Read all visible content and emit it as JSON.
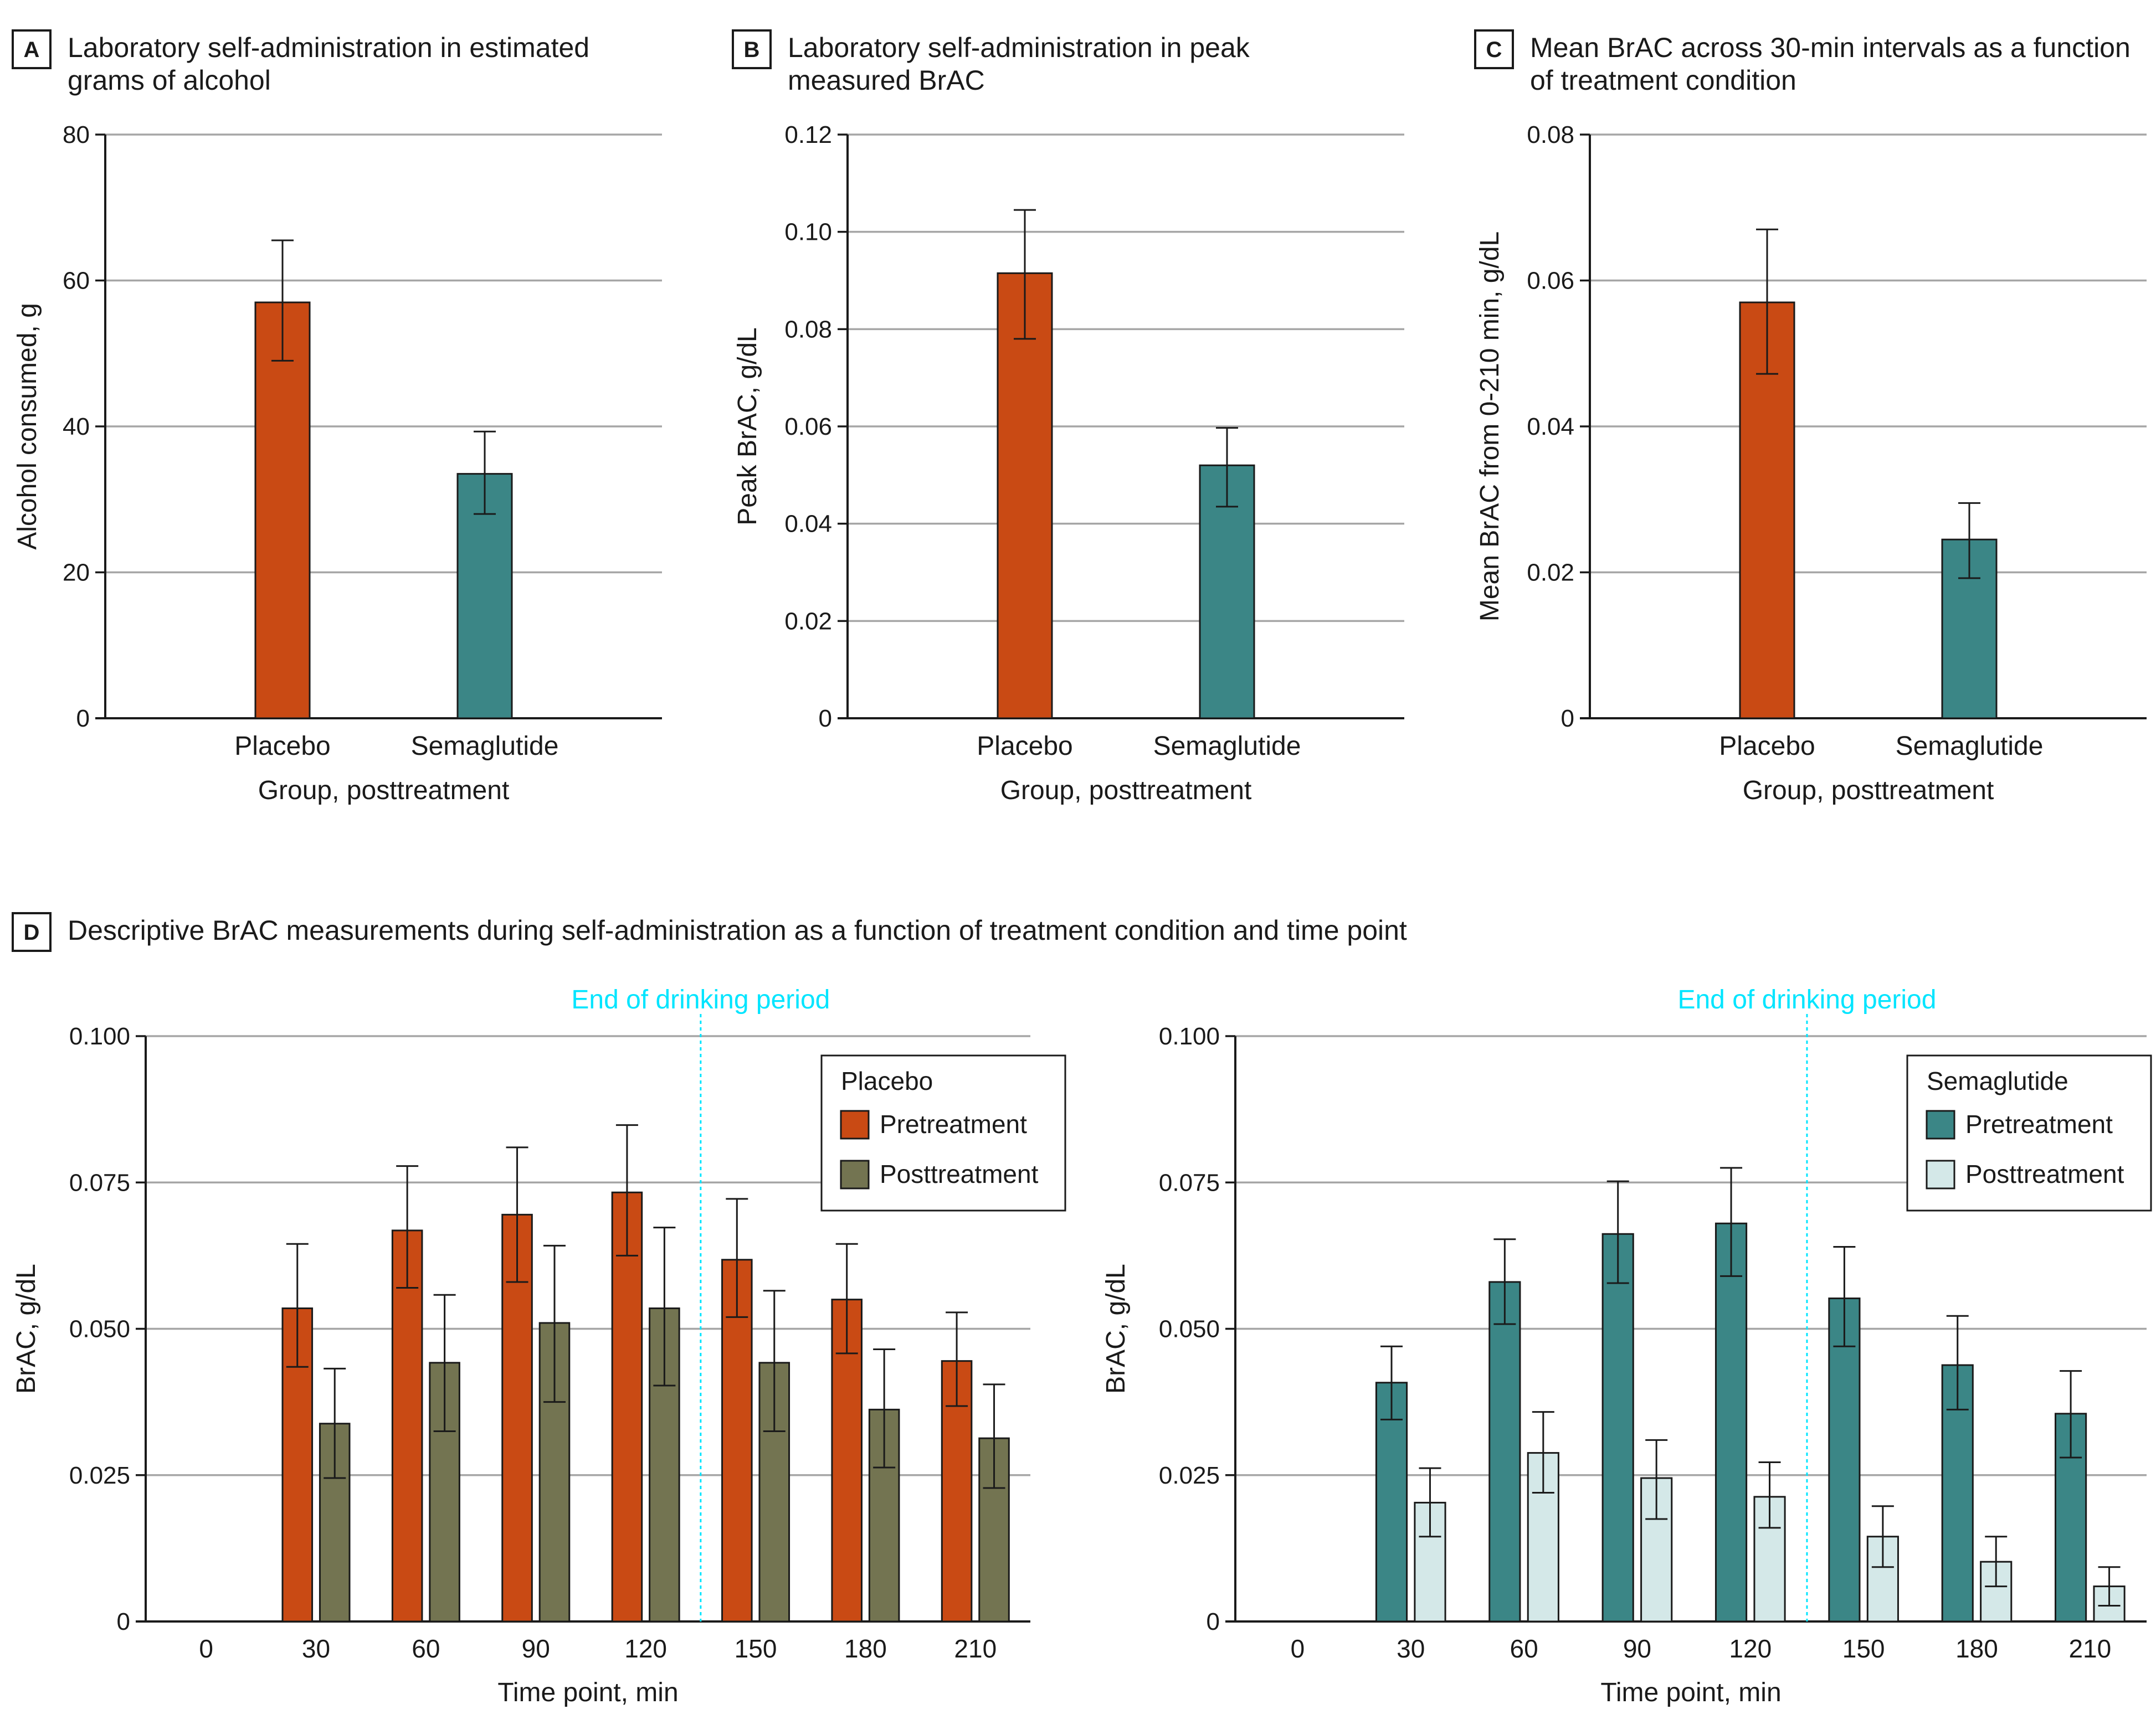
{
  "colors": {
    "placebo": "#c94a14",
    "semaglutide": "#3b8686",
    "placebo_post": "#737451",
    "semaglutide_post": "#d4e8e8",
    "grid": "#a6a6a6",
    "marker": "#00e5ff"
  },
  "panels": {
    "a": {
      "letter": "A",
      "title_line1": "Laboratory self-administration in estimated",
      "title_line2": "grams of alcohol"
    },
    "b": {
      "letter": "B",
      "title_line1": "Laboratory self-administration in peak",
      "title_line2": "measured BrAC"
    },
    "c": {
      "letter": "C",
      "title_line1": "Mean BrAC across 30-min intervals as a function",
      "title_line2": "of treatment condition"
    },
    "d": {
      "letter": "D",
      "title": "Descriptive BrAC measurements during self-administration as a function of treatment condition and time point"
    }
  },
  "chart_data": [
    {
      "id": "A",
      "type": "bar",
      "categories": [
        "Placebo",
        "Semaglutide"
      ],
      "values": [
        57,
        33.5
      ],
      "errors": [
        [
          49,
          65.5
        ],
        [
          28,
          39.3
        ]
      ],
      "xlabel": "Group, posttreatment",
      "ylabel": "Alcohol consumed, g",
      "ylim": [
        0,
        80
      ],
      "yticks": [
        0,
        20,
        40,
        60,
        80
      ],
      "ytick_labels": [
        "0",
        "20",
        "40",
        "60",
        "80"
      ]
    },
    {
      "id": "B",
      "type": "bar",
      "categories": [
        "Placebo",
        "Semaglutide"
      ],
      "values": [
        0.0915,
        0.052
      ],
      "errors": [
        [
          0.078,
          0.1045
        ],
        [
          0.0435,
          0.0597
        ]
      ],
      "xlabel": "Group, posttreatment",
      "ylabel": "Peak BrAC, g/dL",
      "ylim": [
        0,
        0.12
      ],
      "yticks": [
        0,
        0.02,
        0.04,
        0.06,
        0.08,
        0.1,
        0.12
      ],
      "ytick_labels": [
        "0",
        "0.02",
        "0.04",
        "0.06",
        "0.08",
        "0.10",
        "0.12"
      ]
    },
    {
      "id": "C",
      "type": "bar",
      "categories": [
        "Placebo",
        "Semaglutide"
      ],
      "values": [
        0.057,
        0.0245
      ],
      "errors": [
        [
          0.0472,
          0.067
        ],
        [
          0.0192,
          0.0295
        ]
      ],
      "xlabel": "Group, posttreatment",
      "ylabel": "Mean BrAC from 0-210 min, g/dL",
      "ylim": [
        0,
        0.08
      ],
      "yticks": [
        0,
        0.02,
        0.04,
        0.06,
        0.08
      ],
      "ytick_labels": [
        "0",
        "0.02",
        "0.04",
        "0.06",
        "0.08"
      ]
    },
    {
      "id": "D-placebo",
      "type": "bar",
      "categories": [
        "0",
        "30",
        "60",
        "90",
        "120",
        "150",
        "180",
        "210"
      ],
      "series": [
        {
          "name": "Pretreatment",
          "values": [
            null,
            0.0535,
            0.0668,
            0.0695,
            0.0733,
            0.0618,
            0.055,
            0.0445
          ],
          "errors": [
            null,
            [
              0.0435,
              0.0645
            ],
            [
              0.057,
              0.0778
            ],
            [
              0.058,
              0.081
            ],
            [
              0.0625,
              0.0848
            ],
            [
              0.052,
              0.0722
            ],
            [
              0.0458,
              0.0645
            ],
            [
              0.0368,
              0.0528
            ]
          ]
        },
        {
          "name": "Posttreatment",
          "values": [
            null,
            0.0338,
            0.0442,
            0.051,
            0.0535,
            0.0442,
            0.0362,
            0.0313
          ],
          "errors": [
            null,
            [
              0.0245,
              0.0432
            ],
            [
              0.0325,
              0.0558
            ],
            [
              0.0375,
              0.0642
            ],
            [
              0.0403,
              0.0673
            ],
            [
              0.0325,
              0.0565
            ],
            [
              0.0263,
              0.0465
            ],
            [
              0.0228,
              0.0405
            ]
          ]
        }
      ],
      "legend_title": "Placebo",
      "annotation": "End of drinking period",
      "xlabel": "Time point, min",
      "ylabel": "BrAC, g/dL",
      "ylim": [
        0,
        0.1
      ],
      "yticks": [
        0,
        0.025,
        0.05,
        0.075,
        0.1
      ],
      "ytick_labels": [
        "0",
        "0.025",
        "0.050",
        "0.075",
        "0.100"
      ]
    },
    {
      "id": "D-semaglutide",
      "type": "bar",
      "categories": [
        "0",
        "30",
        "60",
        "90",
        "120",
        "150",
        "180",
        "210"
      ],
      "series": [
        {
          "name": "Pretreatment",
          "values": [
            null,
            0.0408,
            0.058,
            0.0662,
            0.068,
            0.0552,
            0.0438,
            0.0355
          ],
          "errors": [
            null,
            [
              0.0345,
              0.047
            ],
            [
              0.0508,
              0.0653
            ],
            [
              0.0578,
              0.0752
            ],
            [
              0.059,
              0.0775
            ],
            [
              0.047,
              0.064
            ],
            [
              0.0362,
              0.0522
            ],
            [
              0.028,
              0.0428
            ]
          ]
        },
        {
          "name": "Posttreatment",
          "values": [
            null,
            0.0203,
            0.0288,
            0.0245,
            0.0213,
            0.0145,
            0.0102,
            0.006
          ],
          "errors": [
            null,
            [
              0.0145,
              0.0262
            ],
            [
              0.022,
              0.0358
            ],
            [
              0.0175,
              0.031
            ],
            [
              0.016,
              0.0272
            ],
            [
              0.0093,
              0.0197
            ],
            [
              0.006,
              0.0145
            ],
            [
              0.0027,
              0.0093
            ]
          ]
        }
      ],
      "legend_title": "Semaglutide",
      "annotation": "End of drinking period",
      "xlabel": "Time point, min",
      "ylabel": "BrAC, g/dL",
      "ylim": [
        0,
        0.1
      ],
      "yticks": [
        0,
        0.025,
        0.05,
        0.075,
        0.1
      ],
      "ytick_labels": [
        "0",
        "0.025",
        "0.050",
        "0.075",
        "0.100"
      ]
    }
  ]
}
